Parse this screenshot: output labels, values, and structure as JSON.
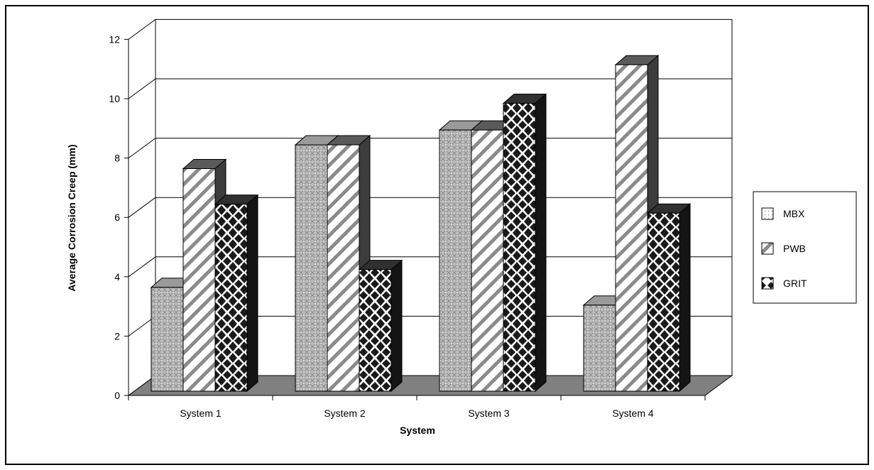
{
  "chart_data": {
    "type": "bar",
    "title": "",
    "xlabel": "System",
    "ylabel": "Average Corrosion Creep (mm)",
    "categories": [
      "System 1",
      "System 2",
      "System 3",
      "System 4"
    ],
    "series": [
      {
        "name": "MBX",
        "values": [
          3.5,
          8.3,
          8.8,
          2.9
        ]
      },
      {
        "name": "PWB",
        "values": [
          7.5,
          8.3,
          8.8,
          11.0
        ]
      },
      {
        "name": "GRIT",
        "values": [
          6.3,
          4.1,
          9.7,
          6.0
        ]
      }
    ],
    "ylim": [
      0,
      12
    ],
    "yticks": [
      "0",
      "2",
      "4",
      "6",
      "8",
      "10",
      "12"
    ],
    "grid": true,
    "legend_position": "right",
    "style_3d": true,
    "colors": {
      "floor": "#808080",
      "MBX_face": "#b8b8b8",
      "PWB_face": "#ffffff",
      "GRIT_face": "#ffffff",
      "side": "#3a3a3a",
      "top": "#8c8c8c"
    }
  }
}
